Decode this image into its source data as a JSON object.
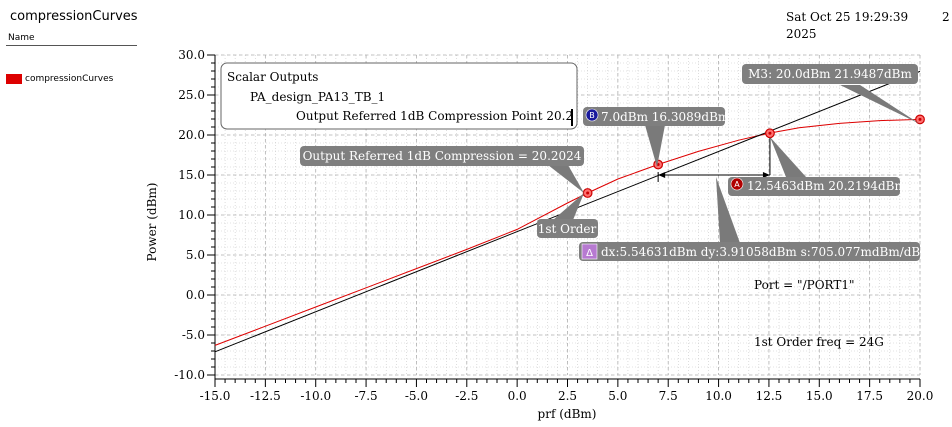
{
  "panel": {
    "title": "compressionCurves",
    "name_header": "Name",
    "legend_label": "compressionCurves",
    "legend_color": "#dd0000"
  },
  "timestamp": {
    "date": "Sat Oct 25 19:29:39",
    "year": "2025",
    "extra": "2"
  },
  "chart_data": {
    "type": "line",
    "xlabel": "prf (dBm)",
    "ylabel": "Power (dBm)",
    "xlim": [
      -15.0,
      20.0
    ],
    "ylim": [
      -10.0,
      30.0
    ],
    "xticks": [
      "-15.0",
      "-12.5",
      "-10.0",
      "-7.5",
      "-5.0",
      "-2.5",
      "0.0",
      "2.5",
      "5.0",
      "7.5",
      "10.0",
      "12.5",
      "15.0",
      "17.5",
      "20.0"
    ],
    "yticks": [
      "-10.0",
      "-5.0",
      "0.0",
      "5.0",
      "10.0",
      "15.0",
      "20.0",
      "25.0",
      "30.0"
    ],
    "grid": true,
    "series": [
      {
        "name": "compressionCurves",
        "color": "#dd0000",
        "x": [
          -15,
          -12.5,
          -10,
          -7.5,
          -5,
          -2.5,
          0,
          2.5,
          3.5,
          5,
          7,
          9,
          11,
          12.5,
          14,
          16,
          18,
          20
        ],
        "y": [
          -6.3,
          -3.9,
          -1.5,
          0.9,
          3.3,
          5.7,
          8.2,
          11.5,
          12.75,
          14.5,
          16.31,
          17.95,
          19.35,
          20.22,
          20.9,
          21.45,
          21.8,
          21.95
        ]
      },
      {
        "name": "1st Order",
        "color": "#000000",
        "x": [
          -15,
          20
        ],
        "y": [
          -7.1,
          27.95
        ]
      }
    ],
    "markers": [
      {
        "x": 3.5,
        "y": 12.75
      },
      {
        "x": 7.0,
        "y": 16.31
      },
      {
        "x": 12.55,
        "y": 20.22
      },
      {
        "x": 20.0,
        "y": 21.95
      }
    ],
    "delta": {
      "x1": 7.0,
      "x2": 12.55,
      "y_h": 15.0,
      "y_v1": 15.0,
      "y_v2": 20.22
    }
  },
  "scalar_box": {
    "heading": "Scalar Outputs",
    "design": "PA_design_PA13_TB_1",
    "row": "Output Referred 1dB Compression Point 20.2"
  },
  "labels": {
    "m3": "M3: 20.0dBm 21.9487dBm",
    "b_badge": "B",
    "b_text": "7.0dBm 16.3089dBm",
    "compression": "Output Referred 1dB Compression = 20.2024",
    "a_badge": "A",
    "a_text": "12.5463dBm 20.2194dBm",
    "first_order": "1st Order",
    "delta_badge": "Δ",
    "delta_text": "dx:5.54631dBm dy:3.91058dBm s:705.077mdBm/dBm",
    "port": "Port = \"/PORT1\"",
    "freq": "1st Order freq = 24G"
  }
}
